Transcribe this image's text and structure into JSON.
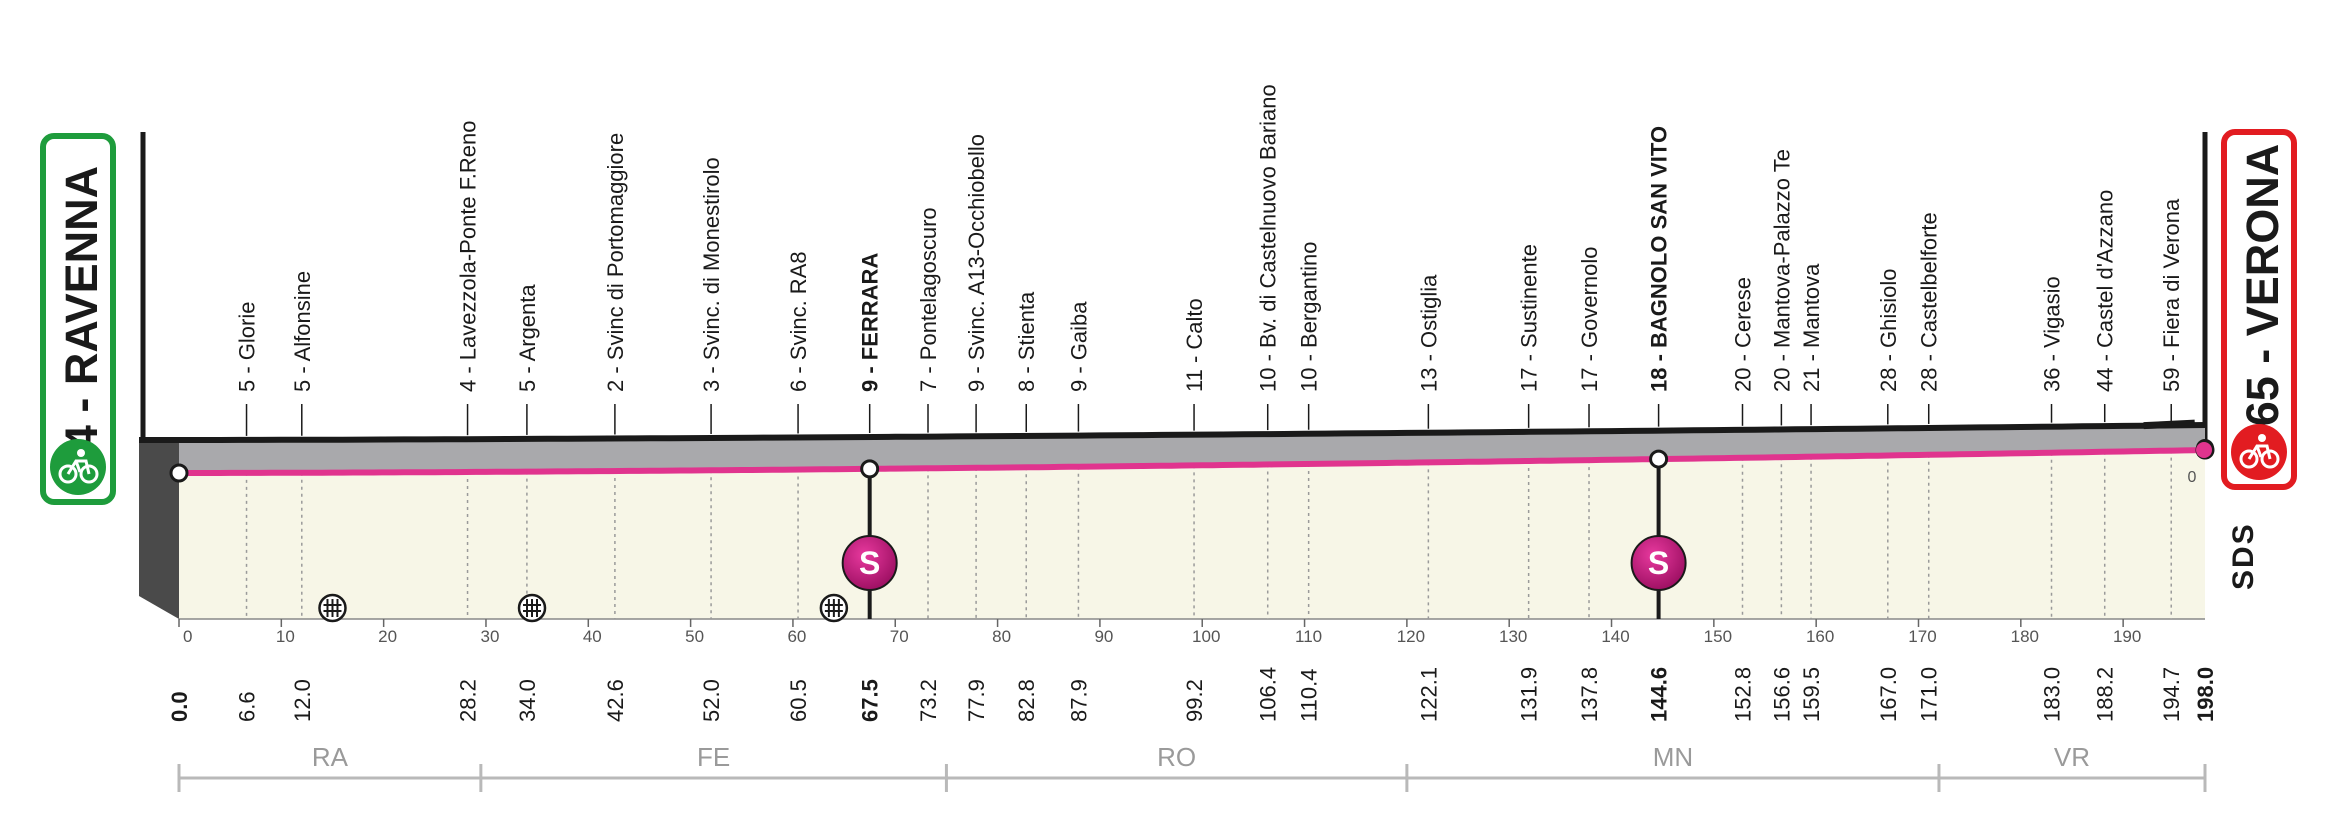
{
  "chart_data": {
    "type": "area",
    "x_unit": "km",
    "xlim": [
      0,
      198.0
    ],
    "axis_ticks": [
      0,
      10,
      20,
      30,
      40,
      50,
      60,
      70,
      80,
      90,
      100,
      110,
      120,
      130,
      140,
      150,
      160,
      170,
      180,
      190
    ],
    "altitude_top_label": "0",
    "start": {
      "badge": "4 - RAVENNA",
      "altitude": 4,
      "name": "RAVENNA",
      "km": 0.0,
      "km_label": "0.0"
    },
    "finish": {
      "badge": "65 - VERONA",
      "altitude": 65,
      "name": "VERONA",
      "km": 198.0,
      "km_label": "198.0"
    },
    "waypoints": [
      {
        "label": "5 - Glorie",
        "km": 6.6,
        "km_label": "6.6",
        "bold": false
      },
      {
        "label": "5 - Alfonsine",
        "km": 12.0,
        "km_label": "12.0",
        "bold": false
      },
      {
        "label": "4 - Lavezzola-Ponte F.Reno",
        "km": 28.2,
        "km_label": "28.2",
        "bold": false
      },
      {
        "label": "5 - Argenta",
        "km": 34.0,
        "km_label": "34.0",
        "bold": false
      },
      {
        "label": "2 - Svinc di Portomaggiore",
        "km": 42.6,
        "km_label": "42.6",
        "bold": false
      },
      {
        "label": "3 - Svinc. di Monestirolo",
        "km": 52.0,
        "km_label": "52.0",
        "bold": false
      },
      {
        "label": "6 - Svinc. RA8",
        "km": 60.5,
        "km_label": "60.5",
        "bold": false
      },
      {
        "label": "9 - FERRARA",
        "km": 67.5,
        "km_label": "67.5",
        "bold": true
      },
      {
        "label": "7 - Pontelagoscuro",
        "km": 73.2,
        "km_label": "73.2",
        "bold": false
      },
      {
        "label": "9 - Svinc. A13-Occhiobello",
        "km": 77.9,
        "km_label": "77.9",
        "bold": false
      },
      {
        "label": "8 - Stienta",
        "km": 82.8,
        "km_label": "82.8",
        "bold": false
      },
      {
        "label": "9 - Gaiba",
        "km": 87.9,
        "km_label": "87.9",
        "bold": false
      },
      {
        "label": "11 - Calto",
        "km": 99.2,
        "km_label": "99.2",
        "bold": false
      },
      {
        "label": "10 - Bv. di Castelnuovo Bariano",
        "km": 106.4,
        "km_label": "106.4",
        "bold": false
      },
      {
        "label": "10 - Bergantino",
        "km": 110.4,
        "km_label": "110.4",
        "bold": false
      },
      {
        "label": "13 - Ostiglia",
        "km": 122.1,
        "km_label": "122.1",
        "bold": false
      },
      {
        "label": "17 - Sustinente",
        "km": 131.9,
        "km_label": "131.9",
        "bold": false
      },
      {
        "label": "17 - Governolo",
        "km": 137.8,
        "km_label": "137.8",
        "bold": false
      },
      {
        "label": "18 - BAGNOLO SAN VITO",
        "km": 144.6,
        "km_label": "144.6",
        "bold": true
      },
      {
        "label": "20 - Cerese",
        "km": 152.8,
        "km_label": "152.8",
        "bold": false
      },
      {
        "label": "20 - Mantova-Palazzo Te",
        "km": 156.6,
        "km_label": "156.6",
        "bold": false
      },
      {
        "label": "21 - Mantova",
        "km": 159.5,
        "km_label": "159.5",
        "bold": false
      },
      {
        "label": "28 - Ghisiolo",
        "km": 167.0,
        "km_label": "167.0",
        "bold": false
      },
      {
        "label": "28 - Castelbelforte",
        "km": 171.0,
        "km_label": "171.0",
        "bold": false
      },
      {
        "label": "36 - Vigasio",
        "km": 183.0,
        "km_label": "183.0",
        "bold": false
      },
      {
        "label": "44 - Castel d'Azzano",
        "km": 188.2,
        "km_label": "188.2",
        "bold": false
      },
      {
        "label": "59 - Fiera di Verona",
        "km": 194.7,
        "km_label": "194.7",
        "bold": false
      }
    ],
    "sprints": [
      {
        "km": 67.5,
        "symbol": "S"
      },
      {
        "km": 144.6,
        "symbol": "S"
      }
    ],
    "level_crossings_km": [
      15.0,
      34.5,
      64.0
    ],
    "provinces": [
      {
        "code": "RA",
        "from_km": 0.0,
        "to_km": 29.5
      },
      {
        "code": "FE",
        "from_km": 29.5,
        "to_km": 75.0
      },
      {
        "code": "RO",
        "from_km": 75.0,
        "to_km": 120.0
      },
      {
        "code": "MN",
        "from_km": 120.0,
        "to_km": 172.0
      },
      {
        "code": "VR",
        "from_km": 172.0,
        "to_km": 198.0
      }
    ],
    "brand_mark": "SDS",
    "colors": {
      "route_line": "#e0348e",
      "sprint": "#c0127a",
      "start_badge": "#1e9c3c",
      "finish_badge": "#e21c21",
      "terrain_fill": "#f7f6e7",
      "relief": "#a9a9ac",
      "outline": "#1a1a1a"
    }
  }
}
